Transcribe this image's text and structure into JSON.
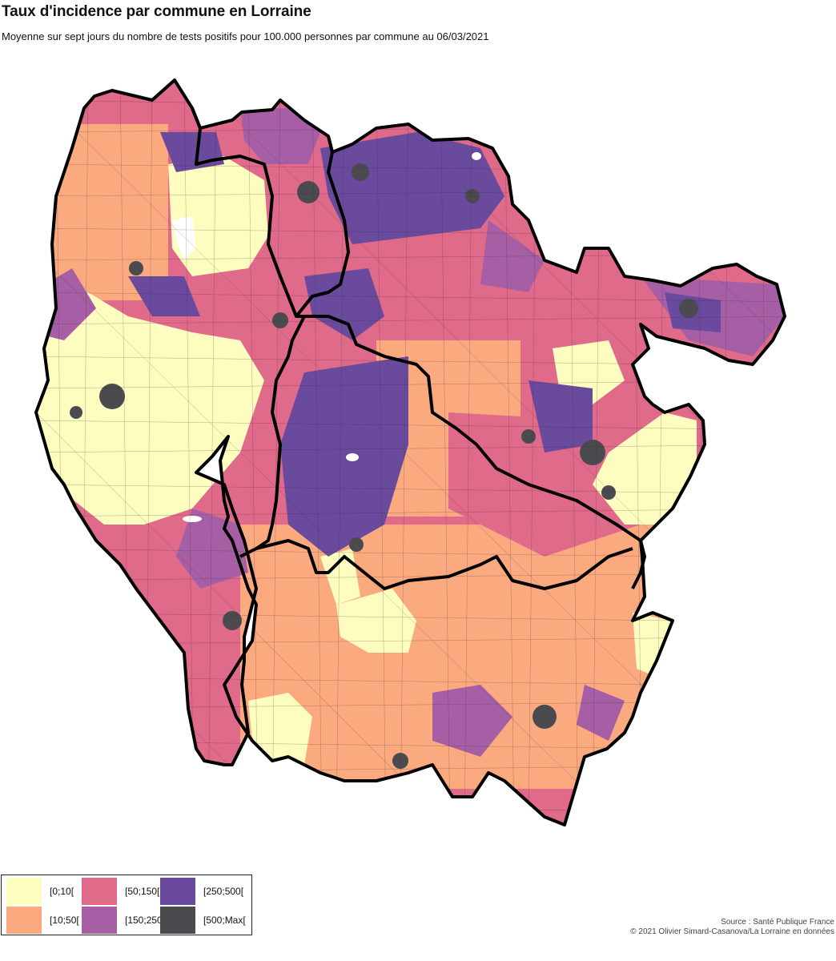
{
  "header": {
    "title": "Taux d'incidence par commune en Lorraine",
    "subtitle": "Moyenne sur sept jours du nombre de tests positifs pour 100.000 personnes par commune au 06/03/2021"
  },
  "legend": {
    "items": [
      {
        "label": "[0;10[",
        "color": "#fcfdbf"
      },
      {
        "label": "[10;50[",
        "color": "#fba97f"
      },
      {
        "label": "[50;150[",
        "color": "#e06a8a"
      },
      {
        "label": "[150;250[",
        "color": "#a65fa5"
      },
      {
        "label": "[250;500[",
        "color": "#6a4a9c"
      },
      {
        "label": "[500;Max[",
        "color": "#4a4a4f"
      }
    ]
  },
  "footer": {
    "source": "Source : Santé Publique France",
    "copyright": "© 2021 Olivier Simard-Casanova/La Lorraine en données"
  }
}
